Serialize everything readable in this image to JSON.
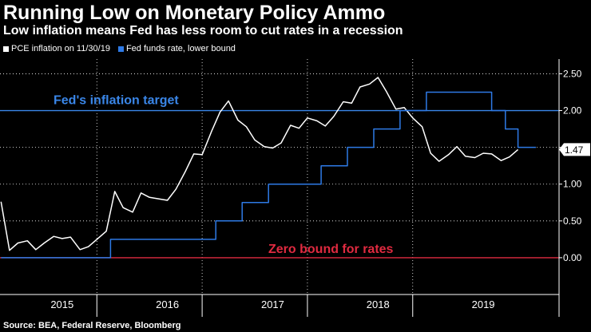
{
  "title": "Running Low on Monetary Policy Ammo",
  "subtitle": "Low inflation means Fed has less room to cut rates in a recession",
  "source": "Source: BEA, Federal Reserve, Bloomberg",
  "colors": {
    "background": "#000000",
    "pce": "#ffffff",
    "fed": "#2e7ae6",
    "target": "#3a86e8",
    "zero": "#e02a40"
  },
  "chart_data": {
    "type": "line",
    "legend": [
      {
        "name": "PCE inflation on 11/30/19",
        "color": "#ffffff"
      },
      {
        "name": "Fed funds rate, lower bound",
        "color": "#2e7ae6"
      }
    ],
    "xlim": [
      2014.91,
      2020.22
    ],
    "ylim": [
      -0.5,
      2.7
    ],
    "yticks": [
      "0.00",
      "0.50",
      "1.00",
      "1.50",
      "2.00",
      "2.50"
    ],
    "ytick_values": [
      0,
      0.5,
      1,
      1.5,
      2,
      2.5
    ],
    "xcategories": [
      "2015",
      "2016",
      "2017",
      "2018",
      "2019"
    ],
    "xcategory_centers": [
      2015.5,
      2016.5,
      2017.5,
      2018.5,
      2019.5
    ],
    "year_boundaries": [
      2015.83,
      2016.83,
      2017.83,
      2018.83
    ],
    "annotations": [
      {
        "text": "Fed's inflation target",
        "y": 2.0,
        "color": "#3a86e8"
      },
      {
        "text": "Zero bound for rates",
        "y": 0.0,
        "color": "#e02a40"
      }
    ],
    "last_value_label": "1.47",
    "last_value": 1.47,
    "series": [
      {
        "name": "PCE inflation on 11/30/19",
        "x": [
          2014.92,
          2015.0,
          2015.08,
          2015.17,
          2015.25,
          2015.33,
          2015.42,
          2015.5,
          2015.58,
          2015.67,
          2015.75,
          2015.83,
          2015.92,
          2016.0,
          2016.08,
          2016.17,
          2016.25,
          2016.33,
          2016.42,
          2016.5,
          2016.58,
          2016.67,
          2016.75,
          2016.83,
          2016.92,
          2017.0,
          2017.08,
          2017.17,
          2017.25,
          2017.33,
          2017.42,
          2017.5,
          2017.58,
          2017.67,
          2017.75,
          2017.83,
          2017.92,
          2018.0,
          2018.08,
          2018.17,
          2018.25,
          2018.33,
          2018.42,
          2018.5,
          2018.58,
          2018.67,
          2018.75,
          2018.83,
          2018.92,
          2019.0,
          2019.08,
          2019.17,
          2019.25,
          2019.33,
          2019.42,
          2019.5,
          2019.58,
          2019.67,
          2019.75,
          2019.83
        ],
        "values": [
          0.76,
          0.1,
          0.2,
          0.23,
          0.11,
          0.2,
          0.29,
          0.26,
          0.28,
          0.11,
          0.15,
          0.25,
          0.36,
          0.9,
          0.68,
          0.62,
          0.88,
          0.82,
          0.8,
          0.78,
          0.93,
          1.17,
          1.41,
          1.4,
          1.72,
          1.98,
          2.13,
          1.87,
          1.78,
          1.6,
          1.51,
          1.49,
          1.56,
          1.8,
          1.76,
          1.9,
          1.86,
          1.79,
          1.92,
          2.12,
          2.1,
          2.32,
          2.36,
          2.45,
          2.26,
          2.02,
          2.04,
          1.9,
          1.78,
          1.42,
          1.31,
          1.4,
          1.51,
          1.38,
          1.36,
          1.42,
          1.41,
          1.32,
          1.37,
          1.47
        ]
      },
      {
        "name": "Fed funds rate, lower bound",
        "x": [
          2014.92,
          2015.96,
          2015.96,
          2016.96,
          2016.96,
          2017.21,
          2017.21,
          2017.46,
          2017.46,
          2017.96,
          2017.96,
          2018.21,
          2018.21,
          2018.46,
          2018.46,
          2018.71,
          2018.71,
          2018.96,
          2018.96,
          2019.58,
          2019.58,
          2019.71,
          2019.71,
          2019.83,
          2019.83,
          2020.0
        ],
        "values": [
          0,
          0,
          0.25,
          0.25,
          0.5,
          0.5,
          0.75,
          0.75,
          1.0,
          1.0,
          1.25,
          1.25,
          1.5,
          1.5,
          1.75,
          1.75,
          2.0,
          2.0,
          2.25,
          2.25,
          2.0,
          2.0,
          1.75,
          1.75,
          1.5,
          1.5
        ]
      }
    ]
  }
}
